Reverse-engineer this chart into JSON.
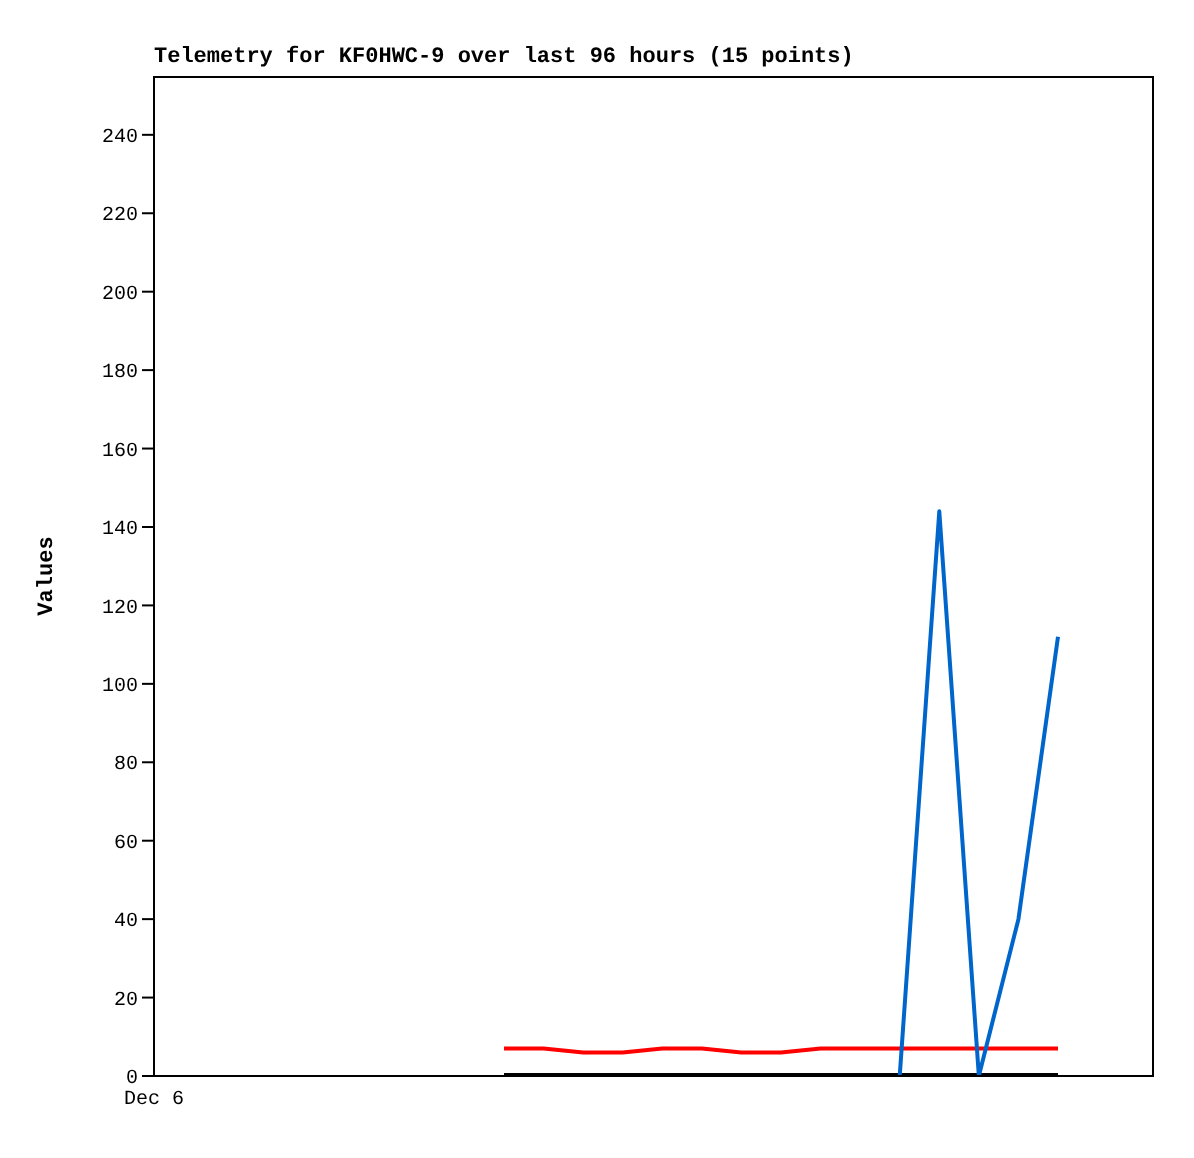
{
  "chart_data": {
    "type": "line",
    "title": "Telemetry for KF0HWC-9 over last 96 hours (15 points)",
    "ylabel": "Values",
    "categories": [
      null,
      null,
      null,
      null,
      null,
      null,
      null,
      null,
      null,
      null,
      null,
      null,
      null,
      null,
      null
    ],
    "series": [
      {
        "color": "#ff0000",
        "values": [
          7,
          7,
          6,
          6,
          7,
          7,
          6,
          6,
          7,
          7,
          7,
          7,
          7,
          7,
          7
        ]
      },
      {
        "color": "#000000",
        "values": [
          0,
          0,
          0,
          0,
          0,
          0,
          0,
          0,
          0,
          0,
          0,
          0,
          0,
          0,
          0
        ]
      },
      {
        "color": "#0066cc",
        "values": [
          null,
          null,
          null,
          null,
          null,
          null,
          null,
          null,
          null,
          null,
          0,
          144,
          0,
          40,
          112
        ]
      }
    ],
    "annotations": [
      "Dec 6"
    ],
    "ylim": [
      0,
      255
    ],
    "yticks": [
      0,
      20,
      40,
      60,
      80,
      100,
      120,
      140,
      160,
      180,
      200,
      220,
      240
    ],
    "grid": false,
    "legend": false,
    "marker": "none",
    "line_style": "solid"
  }
}
